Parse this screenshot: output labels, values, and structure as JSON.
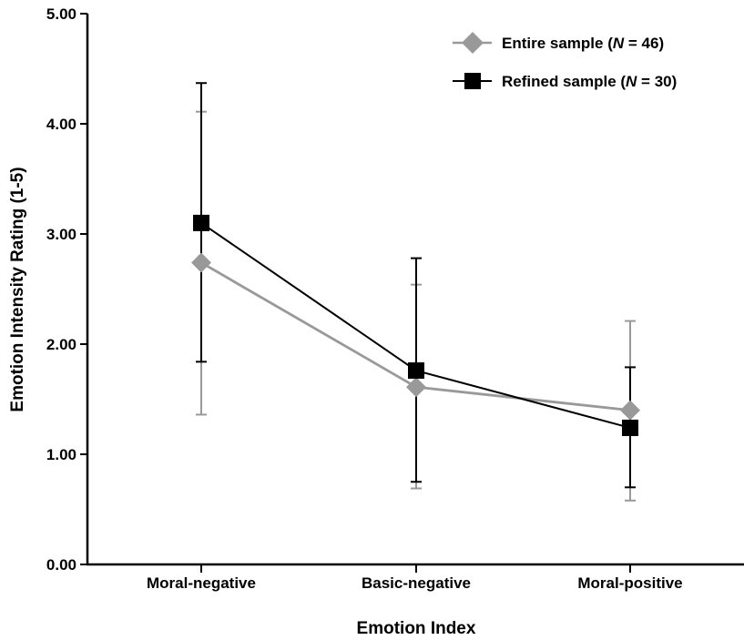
{
  "chart_data": {
    "type": "line",
    "title": "",
    "xlabel": "Emotion Index",
    "ylabel": "Emotion Intensity Rating (1-5)",
    "categories": [
      "Moral-negative",
      "Basic-negative",
      "Moral-positive"
    ],
    "ylim": [
      0,
      5
    ],
    "yticks": [
      "0.00",
      "1.00",
      "2.00",
      "3.00",
      "4.00",
      "5.00"
    ],
    "grid": false,
    "legend_position": "top-right",
    "series": [
      {
        "name": "Entire sample",
        "n_label": "N",
        "n_value": "= 46)",
        "values": [
          2.74,
          1.61,
          1.4
        ],
        "err_low": [
          1.36,
          0.69,
          0.58
        ],
        "err_high": [
          4.11,
          2.54,
          2.21
        ],
        "marker": "diamond",
        "color": "#999999"
      },
      {
        "name": "Refined sample",
        "n_label": "N",
        "n_value": "= 30)",
        "values": [
          3.1,
          1.76,
          1.24
        ],
        "err_low": [
          1.84,
          0.75,
          0.7
        ],
        "err_high": [
          4.37,
          2.78,
          1.79
        ],
        "marker": "square",
        "color": "#000000"
      }
    ]
  },
  "legend": {
    "entire_prefix": "Entire sample (",
    "entire_n": "N",
    "entire_suffix": " = 46)",
    "refined_prefix": "Refined sample (",
    "refined_n": "N",
    "refined_suffix": " = 30)"
  }
}
